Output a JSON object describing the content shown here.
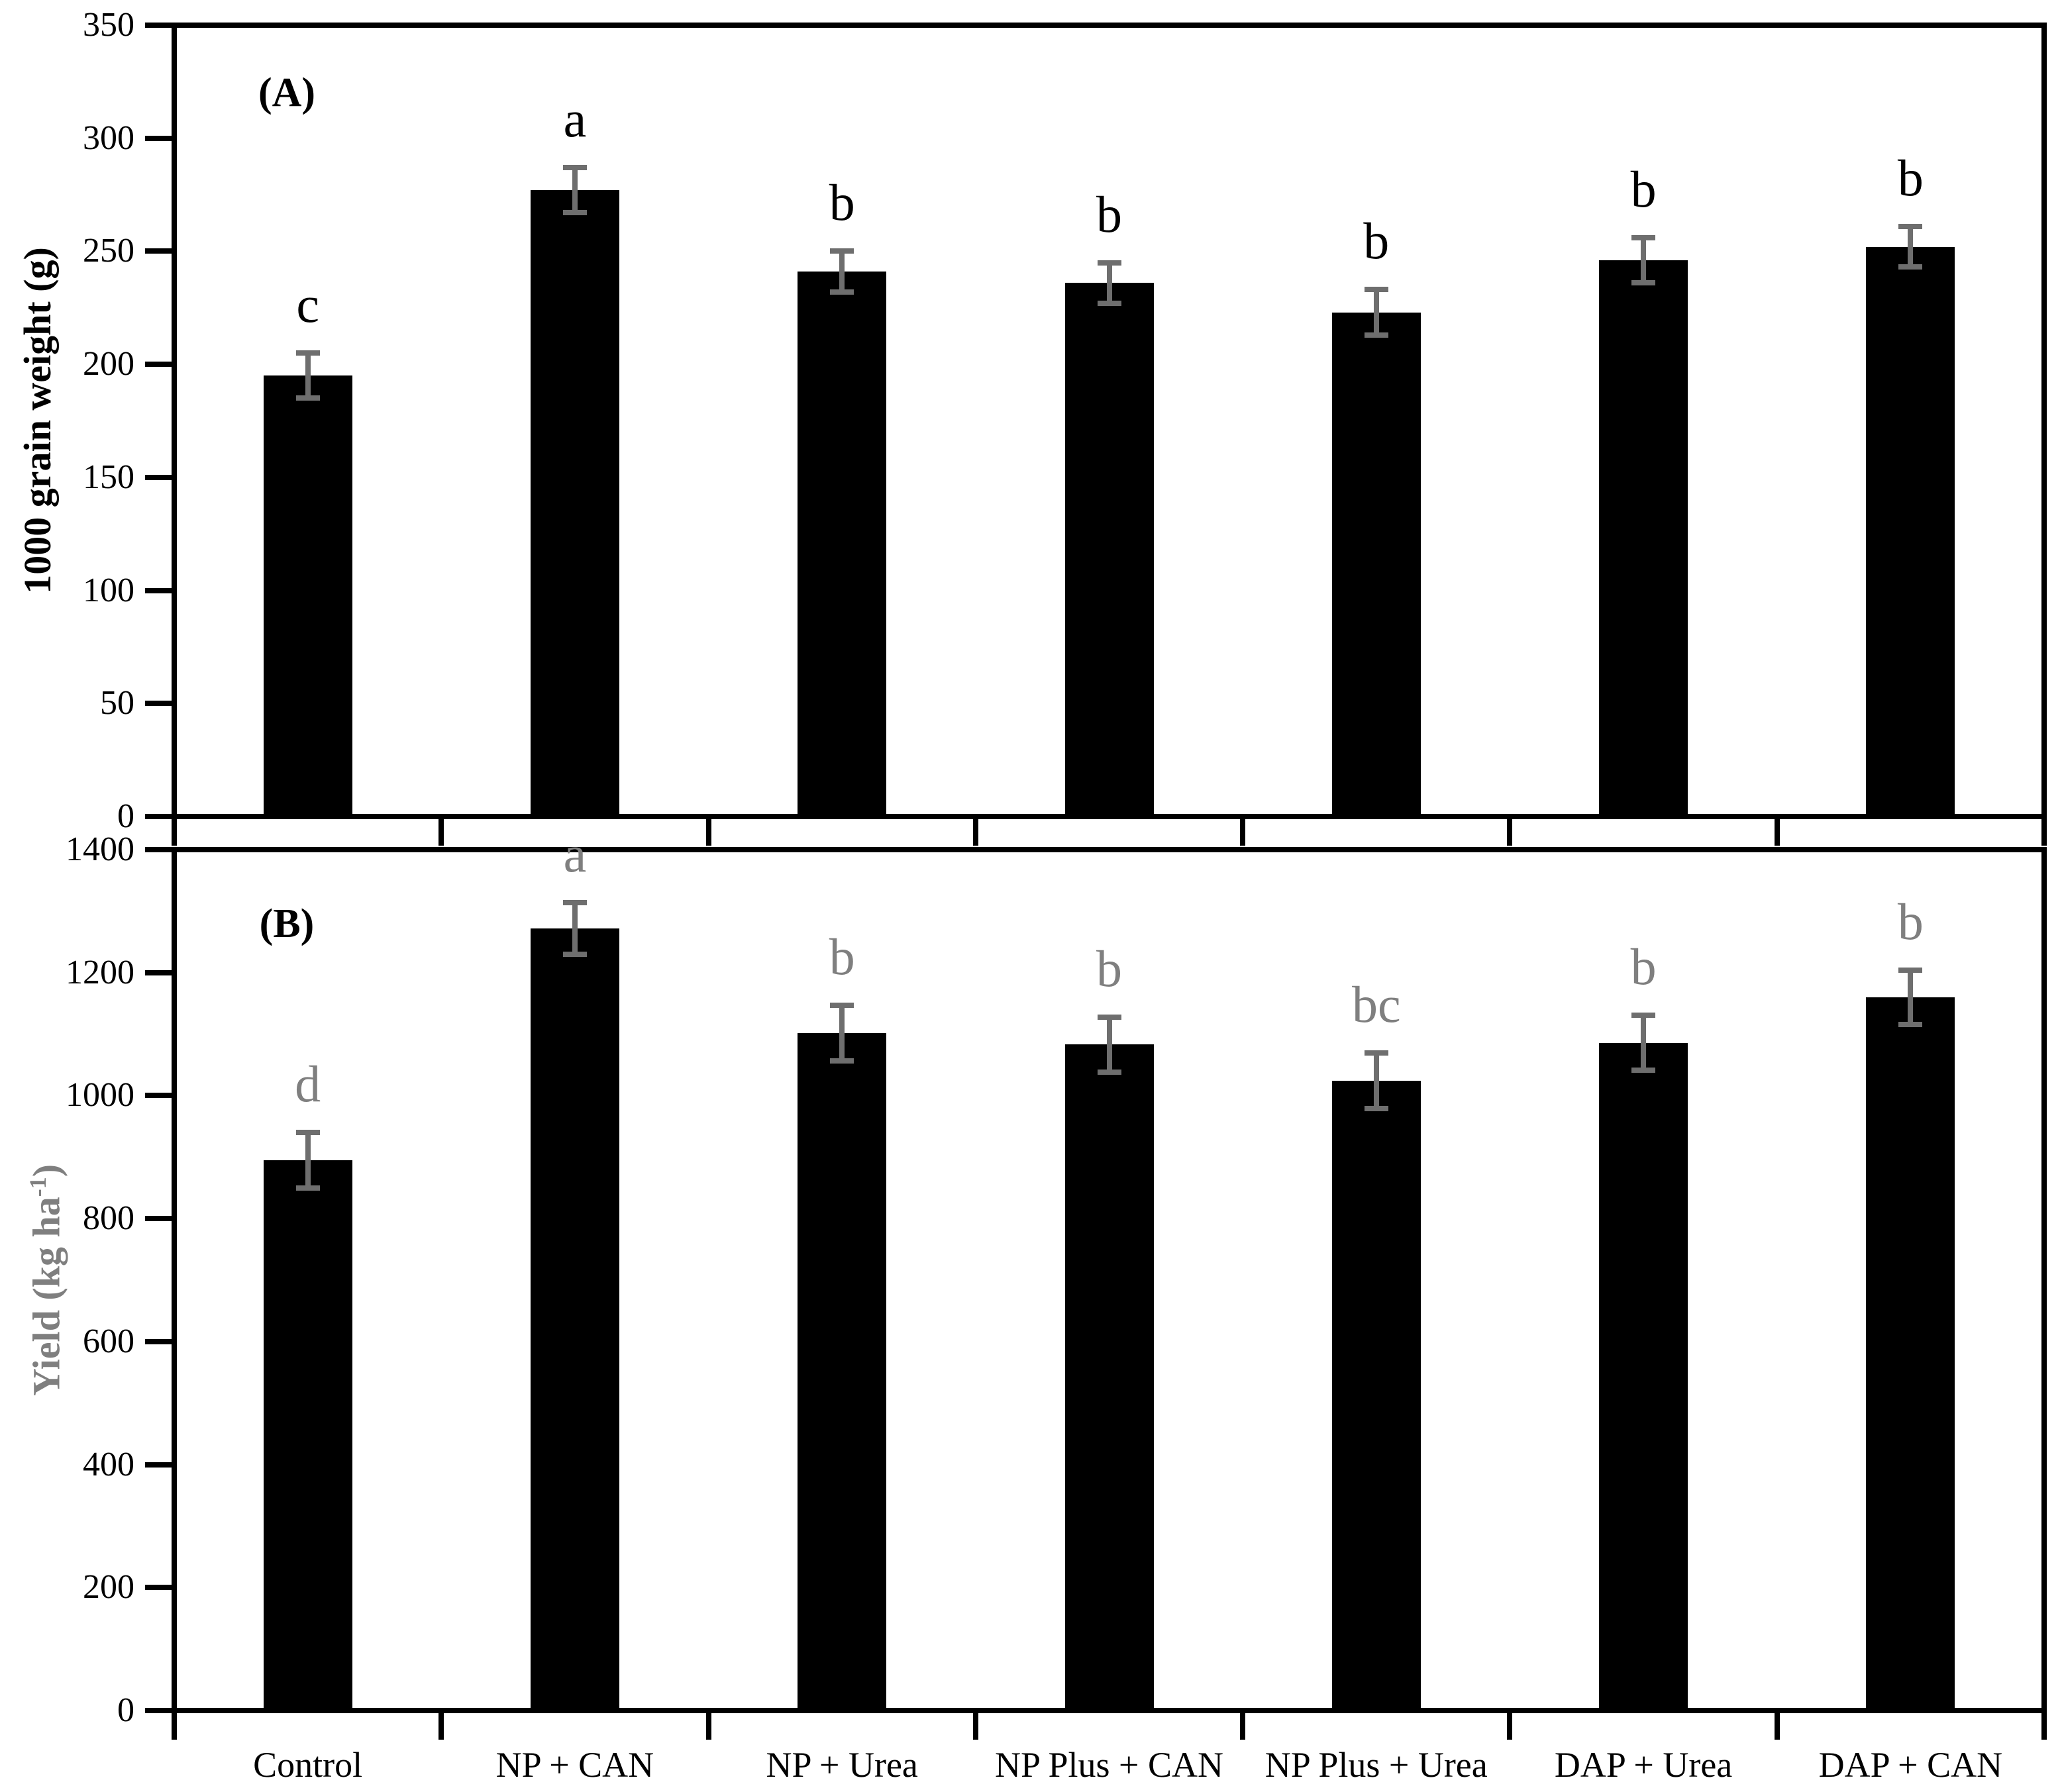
{
  "figure": {
    "background": "#ffffff",
    "bar_color": "#000000",
    "error_bar_color": "#6e6e6e",
    "panel_a_text_color": "#000000",
    "panel_b_text_color": "#7f7f7f"
  },
  "chart_data": {
    "type": "bar",
    "grid": false,
    "legend": null,
    "categories": [
      "Control",
      "NP + CAN",
      "NP + Urea",
      "NP Plus + CAN",
      "NP Plus + Urea",
      "DAP + Urea",
      "DAP + CAN"
    ],
    "panels": [
      {
        "id": "A",
        "panel_label": "(A)",
        "ylabel": "1000 grain weight (g)",
        "ylabel_color": "#000000",
        "ylim": [
          0,
          350
        ],
        "ytick_step": 50,
        "yticks": [
          0,
          50,
          100,
          150,
          200,
          250,
          300,
          350
        ],
        "values": [
          195,
          277,
          241,
          236,
          223,
          246,
          252
        ],
        "errors": [
          10,
          10,
          9,
          9,
          10,
          10,
          9
        ],
        "letters": [
          "c",
          "a",
          "b",
          "b",
          "b",
          "b",
          "b"
        ],
        "letter_color": "#000000",
        "show_x_labels": false
      },
      {
        "id": "B",
        "panel_label": "(B)",
        "ylabel_prefix": "Yield (kg ha",
        "ylabel_sup": "-1",
        "ylabel_suffix": ")",
        "ylabel_color": "#7f7f7f",
        "ylim": [
          0,
          1400
        ],
        "ytick_step": 200,
        "yticks": [
          0,
          200,
          400,
          600,
          800,
          1000,
          1200,
          1400
        ],
        "values": [
          895,
          1272,
          1102,
          1083,
          1024,
          1086,
          1160
        ],
        "errors": [
          45,
          42,
          45,
          45,
          45,
          45,
          44
        ],
        "letters": [
          "d",
          "a",
          "b",
          "b",
          "bc",
          "b",
          "b"
        ],
        "letter_color": "#7f7f7f",
        "show_x_labels": true
      }
    ]
  }
}
